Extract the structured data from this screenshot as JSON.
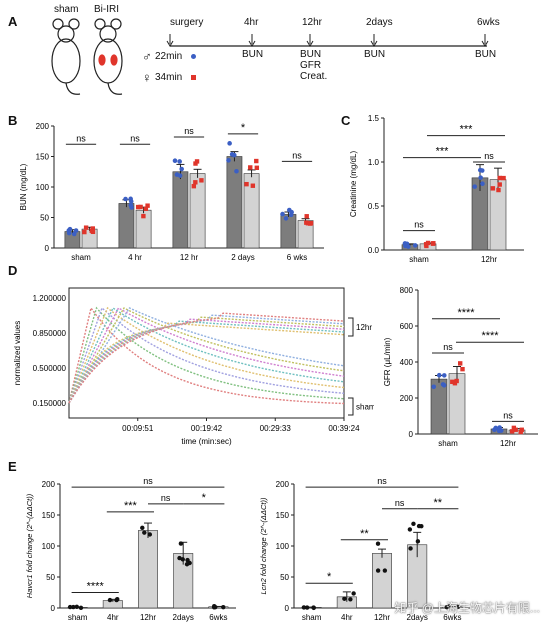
{
  "panels": {
    "A": "A",
    "B": "B",
    "C": "C",
    "D": "D",
    "E": "E"
  },
  "panelA": {
    "mice": [
      "sham",
      "Bi-IRI"
    ],
    "legend": [
      {
        "symbol": "♂",
        "label": "22min",
        "color": "#3b5fc4"
      },
      {
        "symbol": "♀",
        "label": "34min",
        "color": "#e0352b"
      }
    ],
    "timeline": [
      {
        "label": "surgery",
        "below": []
      },
      {
        "label": "4hr",
        "below": [
          "BUN"
        ]
      },
      {
        "label": "12hr",
        "below": [
          "BUN",
          "GFR",
          "Creat."
        ]
      },
      {
        "label": "2days",
        "below": [
          "BUN"
        ]
      },
      {
        "label": "6wks",
        "below": [
          "BUN"
        ]
      }
    ]
  },
  "colors": {
    "male": "#3b5fc4",
    "female": "#e0352b",
    "barDark": "#7d7d7d",
    "barLight": "#d3d3d3"
  },
  "chart_data": [
    {
      "id": "B",
      "type": "bar",
      "ylabel": "BUN (mg/dL)",
      "ylim": [
        0,
        200
      ],
      "yticks": [
        0,
        50,
        100,
        150,
        200
      ],
      "categories": [
        "sham",
        "4 hr",
        "12 hr",
        "2 days",
        "6 wks"
      ],
      "series": [
        {
          "values": [
            27,
            73,
            125,
            150,
            55
          ],
          "err": [
            3,
            6,
            12,
            8,
            4
          ]
        },
        {
          "values": [
            31,
            62,
            122,
            122,
            45
          ],
          "err": [
            3,
            5,
            7,
            6,
            3
          ]
        }
      ],
      "sig": [
        {
          "cat": 0,
          "text": "ns"
        },
        {
          "cat": 1,
          "text": "ns"
        },
        {
          "cat": 2,
          "text": "ns"
        },
        {
          "cat": 3,
          "text": "*"
        },
        {
          "cat": 4,
          "text": "ns"
        }
      ]
    },
    {
      "id": "C",
      "type": "bar",
      "ylabel": "Creatinine (mg/dL)",
      "ylim": [
        0,
        1.5
      ],
      "yticks": [
        0.0,
        0.5,
        1.0,
        1.5
      ],
      "categories": [
        "sham",
        "12hr"
      ],
      "series": [
        {
          "values": [
            0.06,
            0.82
          ],
          "err": [
            0.01,
            0.15
          ]
        },
        {
          "values": [
            0.07,
            0.8
          ],
          "err": [
            0.01,
            0.13
          ]
        }
      ],
      "sig": [
        {
          "text": "ns"
        },
        {
          "text": "ns"
        },
        {
          "text": "***"
        },
        {
          "text": "***"
        }
      ]
    },
    {
      "id": "D-trace",
      "type": "scatter",
      "xlabel": "time (min:sec)",
      "ylabel": "normalized values",
      "yticks": [
        "1.200000",
        "0.850000",
        "0.500000",
        "0.150000"
      ],
      "xticks": [
        "00:09:51",
        "00:19:42",
        "00:29:33",
        "00:39:24"
      ],
      "annotations": [
        "12hr",
        "sham"
      ]
    },
    {
      "id": "D-GFR",
      "type": "bar",
      "ylabel": "GFR (μL/min)",
      "ylim": [
        0,
        800
      ],
      "yticks": [
        0,
        200,
        400,
        600,
        800
      ],
      "categories": [
        "sham",
        "12hr"
      ],
      "series": [
        {
          "values": [
            305,
            28
          ],
          "err": [
            20,
            8
          ]
        },
        {
          "values": [
            335,
            22
          ],
          "err": [
            40,
            8
          ]
        }
      ],
      "sig": [
        {
          "text": "ns"
        },
        {
          "text": "ns"
        },
        {
          "text": "****"
        },
        {
          "text": "****"
        }
      ]
    },
    {
      "id": "E1",
      "type": "bar",
      "ylabel": "Havcr1 fold change (2^-(ΔΔCt))",
      "ylim": [
        0,
        200
      ],
      "yticks": [
        0,
        50,
        100,
        150,
        200
      ],
      "categories": [
        "sham",
        "4hr",
        "12hr",
        "2days",
        "6wks"
      ],
      "values": [
        1,
        12,
        125,
        88,
        2
      ],
      "err": [
        0.5,
        2,
        12,
        18,
        0.5
      ],
      "sig": [
        {
          "text": "****"
        },
        {
          "text": "***"
        },
        {
          "text": "ns"
        },
        {
          "text": "*"
        },
        {
          "text": "ns"
        }
      ]
    },
    {
      "id": "E2",
      "type": "bar",
      "ylabel": "Lcn2 fold change (2^-(ΔΔCt))",
      "ylim": [
        0,
        200
      ],
      "yticks": [
        0,
        50,
        100,
        150,
        200
      ],
      "categories": [
        "sham",
        "4hr",
        "12hr",
        "2days",
        "6wks"
      ],
      "values": [
        1,
        18,
        88,
        102,
        2
      ],
      "err": [
        0.5,
        8,
        7,
        20,
        0.5
      ],
      "sig": [
        {
          "text": "*"
        },
        {
          "text": "**"
        },
        {
          "text": "ns"
        },
        {
          "text": "**"
        },
        {
          "text": "ns"
        }
      ]
    }
  ],
  "watermark": "知乎 @上海生物芯片有限..."
}
